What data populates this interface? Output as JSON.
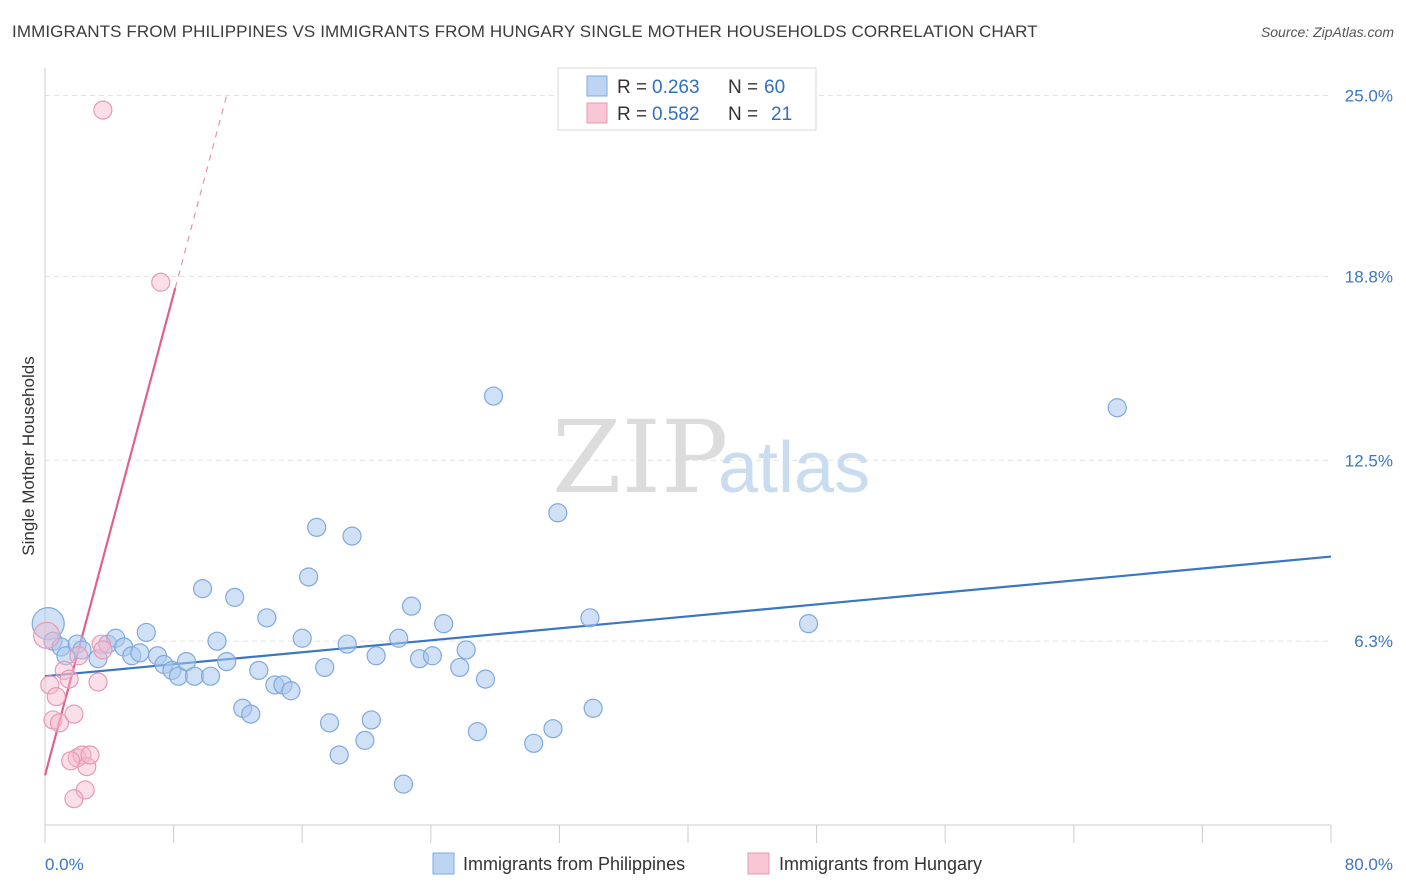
{
  "title": "IMMIGRANTS FROM PHILIPPINES VS IMMIGRANTS FROM HUNGARY SINGLE MOTHER HOUSEHOLDS CORRELATION CHART",
  "source": "Source: ZipAtlas.com",
  "watermark": {
    "zip": "ZIP",
    "atlas": "atlas"
  },
  "colors": {
    "blue": "#3a76c4",
    "blue_fill": "#a9c8ee",
    "pink": "#e0608e",
    "pink_fill": "#f4b8cb"
  },
  "legend": {
    "r_label": "R =",
    "n_label": "N =",
    "rows": [
      {
        "r": "0.263",
        "n": "60"
      },
      {
        "r": "0.582",
        "n": "21"
      }
    ]
  },
  "chart_data": {
    "type": "scatter",
    "ylabel": "Single Mother Households",
    "xlim": [
      0,
      80
    ],
    "ylim": [
      0,
      25.6
    ],
    "y_ticks": [
      {
        "value": 6.3,
        "label": "6.3%"
      },
      {
        "value": 12.5,
        "label": "12.5%"
      },
      {
        "value": 18.8,
        "label": "18.8%"
      },
      {
        "value": 25.0,
        "label": "25.0%"
      }
    ],
    "x_tick_labels": [
      {
        "value": 0,
        "label": "0.0%"
      },
      {
        "value": 80,
        "label": "80.0%"
      }
    ],
    "x_minor_ticks": [
      0,
      8,
      16,
      24,
      32,
      40,
      48,
      56,
      64,
      72,
      80
    ],
    "series": [
      {
        "name": "Immigrants from Philippines",
        "color": "#3a76c4",
        "trend": {
          "x0": 0,
          "y0": 5.1,
          "x1": 80,
          "y1": 9.2
        },
        "points": [
          [
            0.2,
            6.9
          ],
          [
            0.5,
            6.3
          ],
          [
            1.0,
            6.1
          ],
          [
            1.3,
            5.8
          ],
          [
            2.0,
            6.2
          ],
          [
            2.3,
            6.0
          ],
          [
            3.3,
            5.7
          ],
          [
            3.9,
            6.2
          ],
          [
            4.4,
            6.4
          ],
          [
            4.9,
            6.1
          ],
          [
            5.4,
            5.8
          ],
          [
            5.9,
            5.9
          ],
          [
            6.3,
            6.6
          ],
          [
            7.0,
            5.8
          ],
          [
            7.4,
            5.5
          ],
          [
            7.9,
            5.3
          ],
          [
            8.3,
            5.1
          ],
          [
            8.8,
            5.6
          ],
          [
            9.3,
            5.1
          ],
          [
            9.8,
            8.1
          ],
          [
            10.3,
            5.1
          ],
          [
            10.7,
            6.3
          ],
          [
            11.3,
            5.6
          ],
          [
            11.8,
            7.8
          ],
          [
            12.3,
            4.0
          ],
          [
            12.8,
            3.8
          ],
          [
            13.3,
            5.3
          ],
          [
            13.8,
            7.1
          ],
          [
            14.3,
            4.8
          ],
          [
            14.8,
            4.8
          ],
          [
            15.3,
            4.6
          ],
          [
            16.0,
            6.4
          ],
          [
            16.4,
            8.5
          ],
          [
            16.9,
            10.2
          ],
          [
            17.4,
            5.4
          ],
          [
            17.7,
            3.5
          ],
          [
            18.3,
            2.4
          ],
          [
            18.8,
            6.2
          ],
          [
            19.1,
            9.9
          ],
          [
            19.9,
            2.9
          ],
          [
            20.3,
            3.6
          ],
          [
            20.6,
            5.8
          ],
          [
            22.0,
            6.4
          ],
          [
            22.3,
            1.4
          ],
          [
            22.8,
            7.5
          ],
          [
            23.3,
            5.7
          ],
          [
            24.1,
            5.8
          ],
          [
            24.8,
            6.9
          ],
          [
            25.8,
            5.4
          ],
          [
            26.2,
            6.0
          ],
          [
            26.9,
            3.2
          ],
          [
            27.4,
            5.0
          ],
          [
            27.9,
            14.7
          ],
          [
            30.4,
            2.8
          ],
          [
            31.6,
            3.3
          ],
          [
            31.9,
            10.7
          ],
          [
            33.9,
            7.1
          ],
          [
            34.1,
            4.0
          ],
          [
            47.5,
            6.9
          ],
          [
            66.7,
            14.3
          ]
        ],
        "sizes": [
          34,
          20,
          20,
          20,
          20,
          20,
          20,
          20,
          20,
          20,
          20,
          20,
          20,
          20,
          20,
          20,
          20,
          20,
          20,
          20,
          20,
          20,
          20,
          20,
          20,
          20,
          20,
          20,
          20,
          20,
          20,
          20,
          20,
          20,
          20,
          20,
          20,
          20,
          20,
          20,
          20,
          20,
          20,
          20,
          20,
          20,
          20,
          20,
          20,
          20,
          20,
          20,
          20,
          20,
          20,
          20,
          20,
          20,
          20,
          20
        ]
      },
      {
        "name": "Immigrants from Hungary",
        "color": "#e0608e",
        "trend": {
          "x0": 0,
          "y0": 1.7,
          "x1": 8.1,
          "y1": 18.4
        },
        "trend_dashed": {
          "x0": 8.1,
          "y0": 18.4,
          "x1": 11.3,
          "y1": 25.0
        },
        "points": [
          [
            0.1,
            6.5
          ],
          [
            0.3,
            4.8
          ],
          [
            0.5,
            3.6
          ],
          [
            0.7,
            4.4
          ],
          [
            0.9,
            3.5
          ],
          [
            1.2,
            5.3
          ],
          [
            1.5,
            5.0
          ],
          [
            1.8,
            3.8
          ],
          [
            2.0,
            2.3
          ],
          [
            2.3,
            2.4
          ],
          [
            2.5,
            1.2
          ],
          [
            2.6,
            2.0
          ],
          [
            2.8,
            2.4
          ],
          [
            3.3,
            4.9
          ],
          [
            3.5,
            6.2
          ],
          [
            3.6,
            6.0
          ],
          [
            1.6,
            2.2
          ],
          [
            1.8,
            0.9
          ],
          [
            2.1,
            5.8
          ],
          [
            3.6,
            24.5
          ],
          [
            7.2,
            18.6
          ]
        ],
        "sizes": [
          28,
          20,
          20,
          20,
          20,
          20,
          20,
          20,
          20,
          20,
          20,
          20,
          20,
          20,
          20,
          20,
          20,
          20,
          20,
          20,
          20
        ]
      }
    ]
  }
}
